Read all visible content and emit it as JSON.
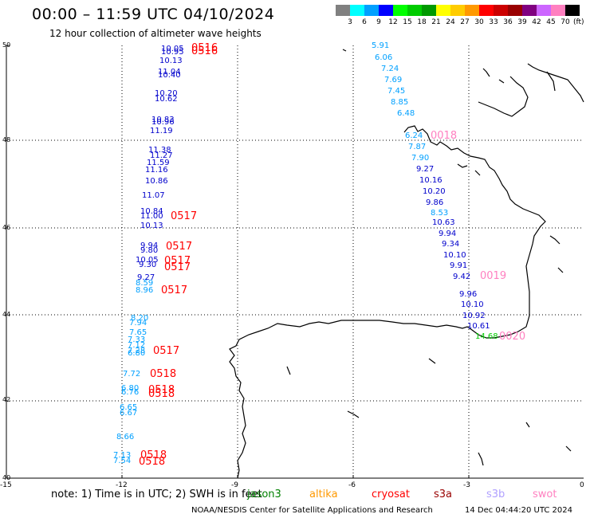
{
  "header": {
    "title": "00:00 – 11:59 UTC 04/10/2024",
    "subtitle": "12 hour collection of altimeter wave heights"
  },
  "colorbar": {
    "unit": "(ft)",
    "colors": [
      "#808080",
      "#00ffff",
      "#00a0ff",
      "#0000ff",
      "#00ff00",
      "#00cc00",
      "#009900",
      "#ffff00",
      "#ffcc00",
      "#ff9900",
      "#ff0000",
      "#cc0000",
      "#990000",
      "#800080",
      "#cc66ff",
      "#ff80c0",
      "#000000"
    ],
    "labels": [
      "3",
      "6",
      "9",
      "12",
      "15",
      "18",
      "21",
      "24",
      "27",
      "30",
      "33",
      "36",
      "39",
      "42",
      "45",
      "70"
    ]
  },
  "axes": {
    "lat_labels": [
      "50",
      "48",
      "46",
      "44",
      "42",
      "40"
    ],
    "lon_labels": [
      "-15",
      "-12",
      "-9",
      "-6",
      "-3",
      "0"
    ]
  },
  "footer": {
    "note": "note: 1) Time is in UTC; 2) SWH is in feet",
    "legend": [
      {
        "name": "jason3",
        "color": "#008000"
      },
      {
        "name": "altika",
        "color": "#ff9900"
      },
      {
        "name": "cryosat",
        "color": "#ff0000"
      },
      {
        "name": "s3a",
        "color": "#990000"
      },
      {
        "name": "s3b",
        "color": "#b0a0ff"
      },
      {
        "name": "swot",
        "color": "#ff80c0"
      }
    ],
    "org": "NOAA/NESDIS Center for Satellite Applications and Research",
    "timestamp": "14 Dec 04:44:20 UTC 2024"
  },
  "map": {
    "wave_heights": [
      {
        "text": "10.05",
        "color": "#0000cc"
      },
      {
        "text": "10.95",
        "color": "#0000cc"
      },
      {
        "text": "10.13",
        "color": "#0000cc"
      },
      {
        "text": "11.04",
        "color": "#0000cc"
      },
      {
        "text": "10.40",
        "color": "#0000cc"
      },
      {
        "text": "10.20",
        "color": "#0000cc"
      },
      {
        "text": "10.62",
        "color": "#0000cc"
      },
      {
        "text": "10.83",
        "color": "#0000cc"
      },
      {
        "text": "10.96",
        "color": "#0000cc"
      },
      {
        "text": "11.19",
        "color": "#0000cc"
      },
      {
        "text": "11.38",
        "color": "#0000cc"
      },
      {
        "text": "11.27",
        "color": "#0000cc"
      },
      {
        "text": "11.59",
        "color": "#0000cc"
      },
      {
        "text": "11.16",
        "color": "#0000cc"
      },
      {
        "text": "10.86",
        "color": "#0000cc"
      },
      {
        "text": "11.07",
        "color": "#0000cc"
      },
      {
        "text": "10.84",
        "color": "#0000cc"
      },
      {
        "text": "11.00",
        "color": "#0000cc"
      },
      {
        "text": "10.13",
        "color": "#0000cc"
      },
      {
        "text": "9.94",
        "color": "#0000cc"
      },
      {
        "text": "9.80",
        "color": "#0000cc"
      },
      {
        "text": "10.05",
        "color": "#0000cc"
      },
      {
        "text": "9.30",
        "color": "#0000cc"
      },
      {
        "text": "9.27",
        "color": "#0000cc"
      },
      {
        "text": "8.59",
        "color": "#00a0ff"
      },
      {
        "text": "8.96",
        "color": "#00a0ff"
      },
      {
        "text": "8.20",
        "color": "#00a0ff"
      },
      {
        "text": "7.94",
        "color": "#00a0ff"
      },
      {
        "text": "7.65",
        "color": "#00a0ff"
      },
      {
        "text": "7.33",
        "color": "#00a0ff"
      },
      {
        "text": "7.12",
        "color": "#00a0ff"
      },
      {
        "text": "7.28",
        "color": "#00a0ff"
      },
      {
        "text": "6.80",
        "color": "#00a0ff"
      },
      {
        "text": "7.72",
        "color": "#00a0ff"
      },
      {
        "text": "6.80",
        "color": "#00a0ff"
      },
      {
        "text": "6.76",
        "color": "#00a0ff"
      },
      {
        "text": "6.65",
        "color": "#00a0ff"
      },
      {
        "text": "6.67",
        "color": "#00a0ff"
      },
      {
        "text": "8.66",
        "color": "#00a0ff"
      },
      {
        "text": "7.13",
        "color": "#00a0ff"
      },
      {
        "text": "7.54",
        "color": "#00a0ff"
      },
      {
        "text": "5.91",
        "color": "#00a0ff"
      },
      {
        "text": "6.06",
        "color": "#00a0ff"
      },
      {
        "text": "7.24",
        "color": "#00a0ff"
      },
      {
        "text": "7.69",
        "color": "#00a0ff"
      },
      {
        "text": "7.45",
        "color": "#00a0ff"
      },
      {
        "text": "8.85",
        "color": "#00a0ff"
      },
      {
        "text": "6.48",
        "color": "#00a0ff"
      },
      {
        "text": "6.24",
        "color": "#00a0ff"
      },
      {
        "text": "7.87",
        "color": "#00a0ff"
      },
      {
        "text": "7.90",
        "color": "#00a0ff"
      },
      {
        "text": "9.27",
        "color": "#0000cc"
      },
      {
        "text": "10.16",
        "color": "#0000cc"
      },
      {
        "text": "10.20",
        "color": "#0000cc"
      },
      {
        "text": "9.86",
        "color": "#0000cc"
      },
      {
        "text": "8.53",
        "color": "#00a0ff"
      },
      {
        "text": "10.63",
        "color": "#0000cc"
      },
      {
        "text": "9.94",
        "color": "#0000cc"
      },
      {
        "text": "9.34",
        "color": "#0000cc"
      },
      {
        "text": "10.10",
        "color": "#0000cc"
      },
      {
        "text": "9.91",
        "color": "#0000cc"
      },
      {
        "text": "9.42",
        "color": "#0000cc"
      },
      {
        "text": "9.96",
        "color": "#0000cc"
      },
      {
        "text": "10.10",
        "color": "#0000cc"
      },
      {
        "text": "10.92",
        "color": "#0000cc"
      },
      {
        "text": "10.61",
        "color": "#0000cc"
      },
      {
        "text": "14.68",
        "color": "#00cc00"
      }
    ],
    "pass_times": [
      {
        "text": "0516",
        "color": "#ff0000"
      },
      {
        "text": "0516",
        "color": "#ff0000"
      },
      {
        "text": "0517",
        "color": "#ff0000"
      },
      {
        "text": "0517",
        "color": "#ff0000"
      },
      {
        "text": "0517",
        "color": "#ff0000"
      },
      {
        "text": "0517",
        "color": "#ff0000"
      },
      {
        "text": "0517",
        "color": "#ff0000"
      },
      {
        "text": "0517",
        "color": "#ff0000"
      },
      {
        "text": "0518",
        "color": "#ff0000"
      },
      {
        "text": "0518",
        "color": "#ff0000"
      },
      {
        "text": "0518",
        "color": "#ff0000"
      },
      {
        "text": "0518",
        "color": "#ff0000"
      },
      {
        "text": "0518",
        "color": "#ff0000"
      },
      {
        "text": "0018",
        "color": "#ff80c0"
      },
      {
        "text": "0019",
        "color": "#ff80c0"
      },
      {
        "text": "0020",
        "color": "#ff80c0"
      }
    ]
  }
}
